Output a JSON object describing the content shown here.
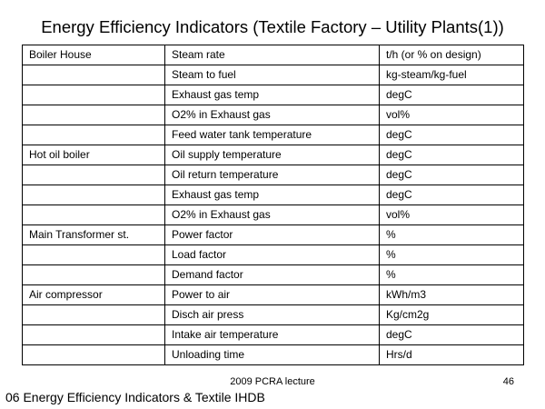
{
  "slide": {
    "title": "Energy Efficiency Indicators (Textile Factory – Utility Plants(1))"
  },
  "table": {
    "rows": [
      {
        "plant": "Boiler House",
        "indicator": "Steam rate",
        "unit": "t/h (or % on design)"
      },
      {
        "plant": "",
        "indicator": "Steam to fuel",
        "unit": "kg-steam/kg-fuel"
      },
      {
        "plant": "",
        "indicator": "Exhaust gas temp",
        "unit": "degC"
      },
      {
        "plant": "",
        "indicator": "O2% in Exhaust gas",
        "unit": "vol%"
      },
      {
        "plant": "",
        "indicator": "Feed water tank temperature",
        "unit": "degC"
      },
      {
        "plant": "Hot oil boiler",
        "indicator": "Oil supply temperature",
        "unit": "degC"
      },
      {
        "plant": "",
        "indicator": "Oil return temperature",
        "unit": "degC"
      },
      {
        "plant": "",
        "indicator": "Exhaust gas temp",
        "unit": "degC"
      },
      {
        "plant": "",
        "indicator": "O2% in Exhaust gas",
        "unit": "vol%"
      },
      {
        "plant": "Main Transformer st.",
        "indicator": "Power factor",
        "unit": "%"
      },
      {
        "plant": "",
        "indicator": "Load factor",
        "unit": "%"
      },
      {
        "plant": "",
        "indicator": "Demand factor",
        "unit": "%"
      },
      {
        "plant": "Air compressor",
        "indicator": "Power to air",
        "unit": "kWh/m3"
      },
      {
        "plant": "",
        "indicator": "Disch air press",
        "unit": "Kg/cm2g"
      },
      {
        "plant": "",
        "indicator": "Intake air temperature",
        "unit": "degC"
      },
      {
        "plant": "",
        "indicator": "Unloading time",
        "unit": "Hrs/d"
      }
    ]
  },
  "footer": {
    "lecture": "2009 PCRA lecture",
    "page_number": "46",
    "caption": "06 Energy Efficiency Indicators & Textile IHDB"
  }
}
